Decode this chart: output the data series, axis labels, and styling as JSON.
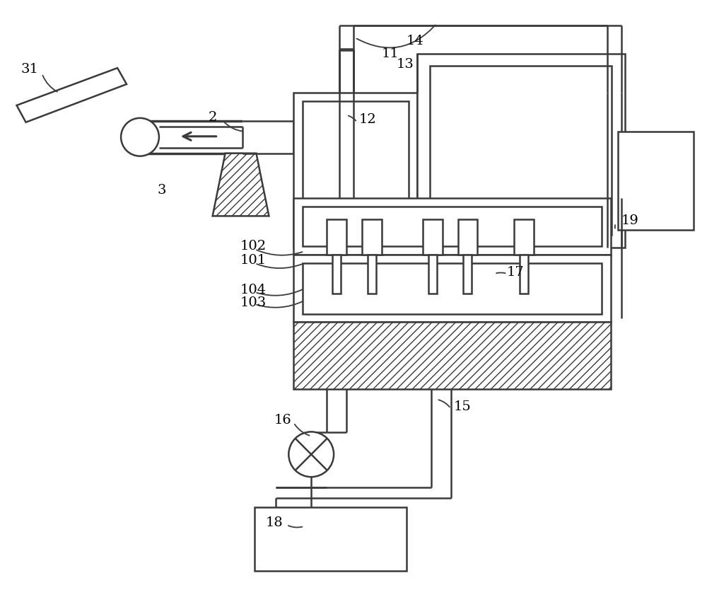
{
  "bg": "#ffffff",
  "lc": "#3a3a3a",
  "lw": 1.8,
  "fig_w": 10.0,
  "fig_h": 8.51,
  "dpi": 100
}
